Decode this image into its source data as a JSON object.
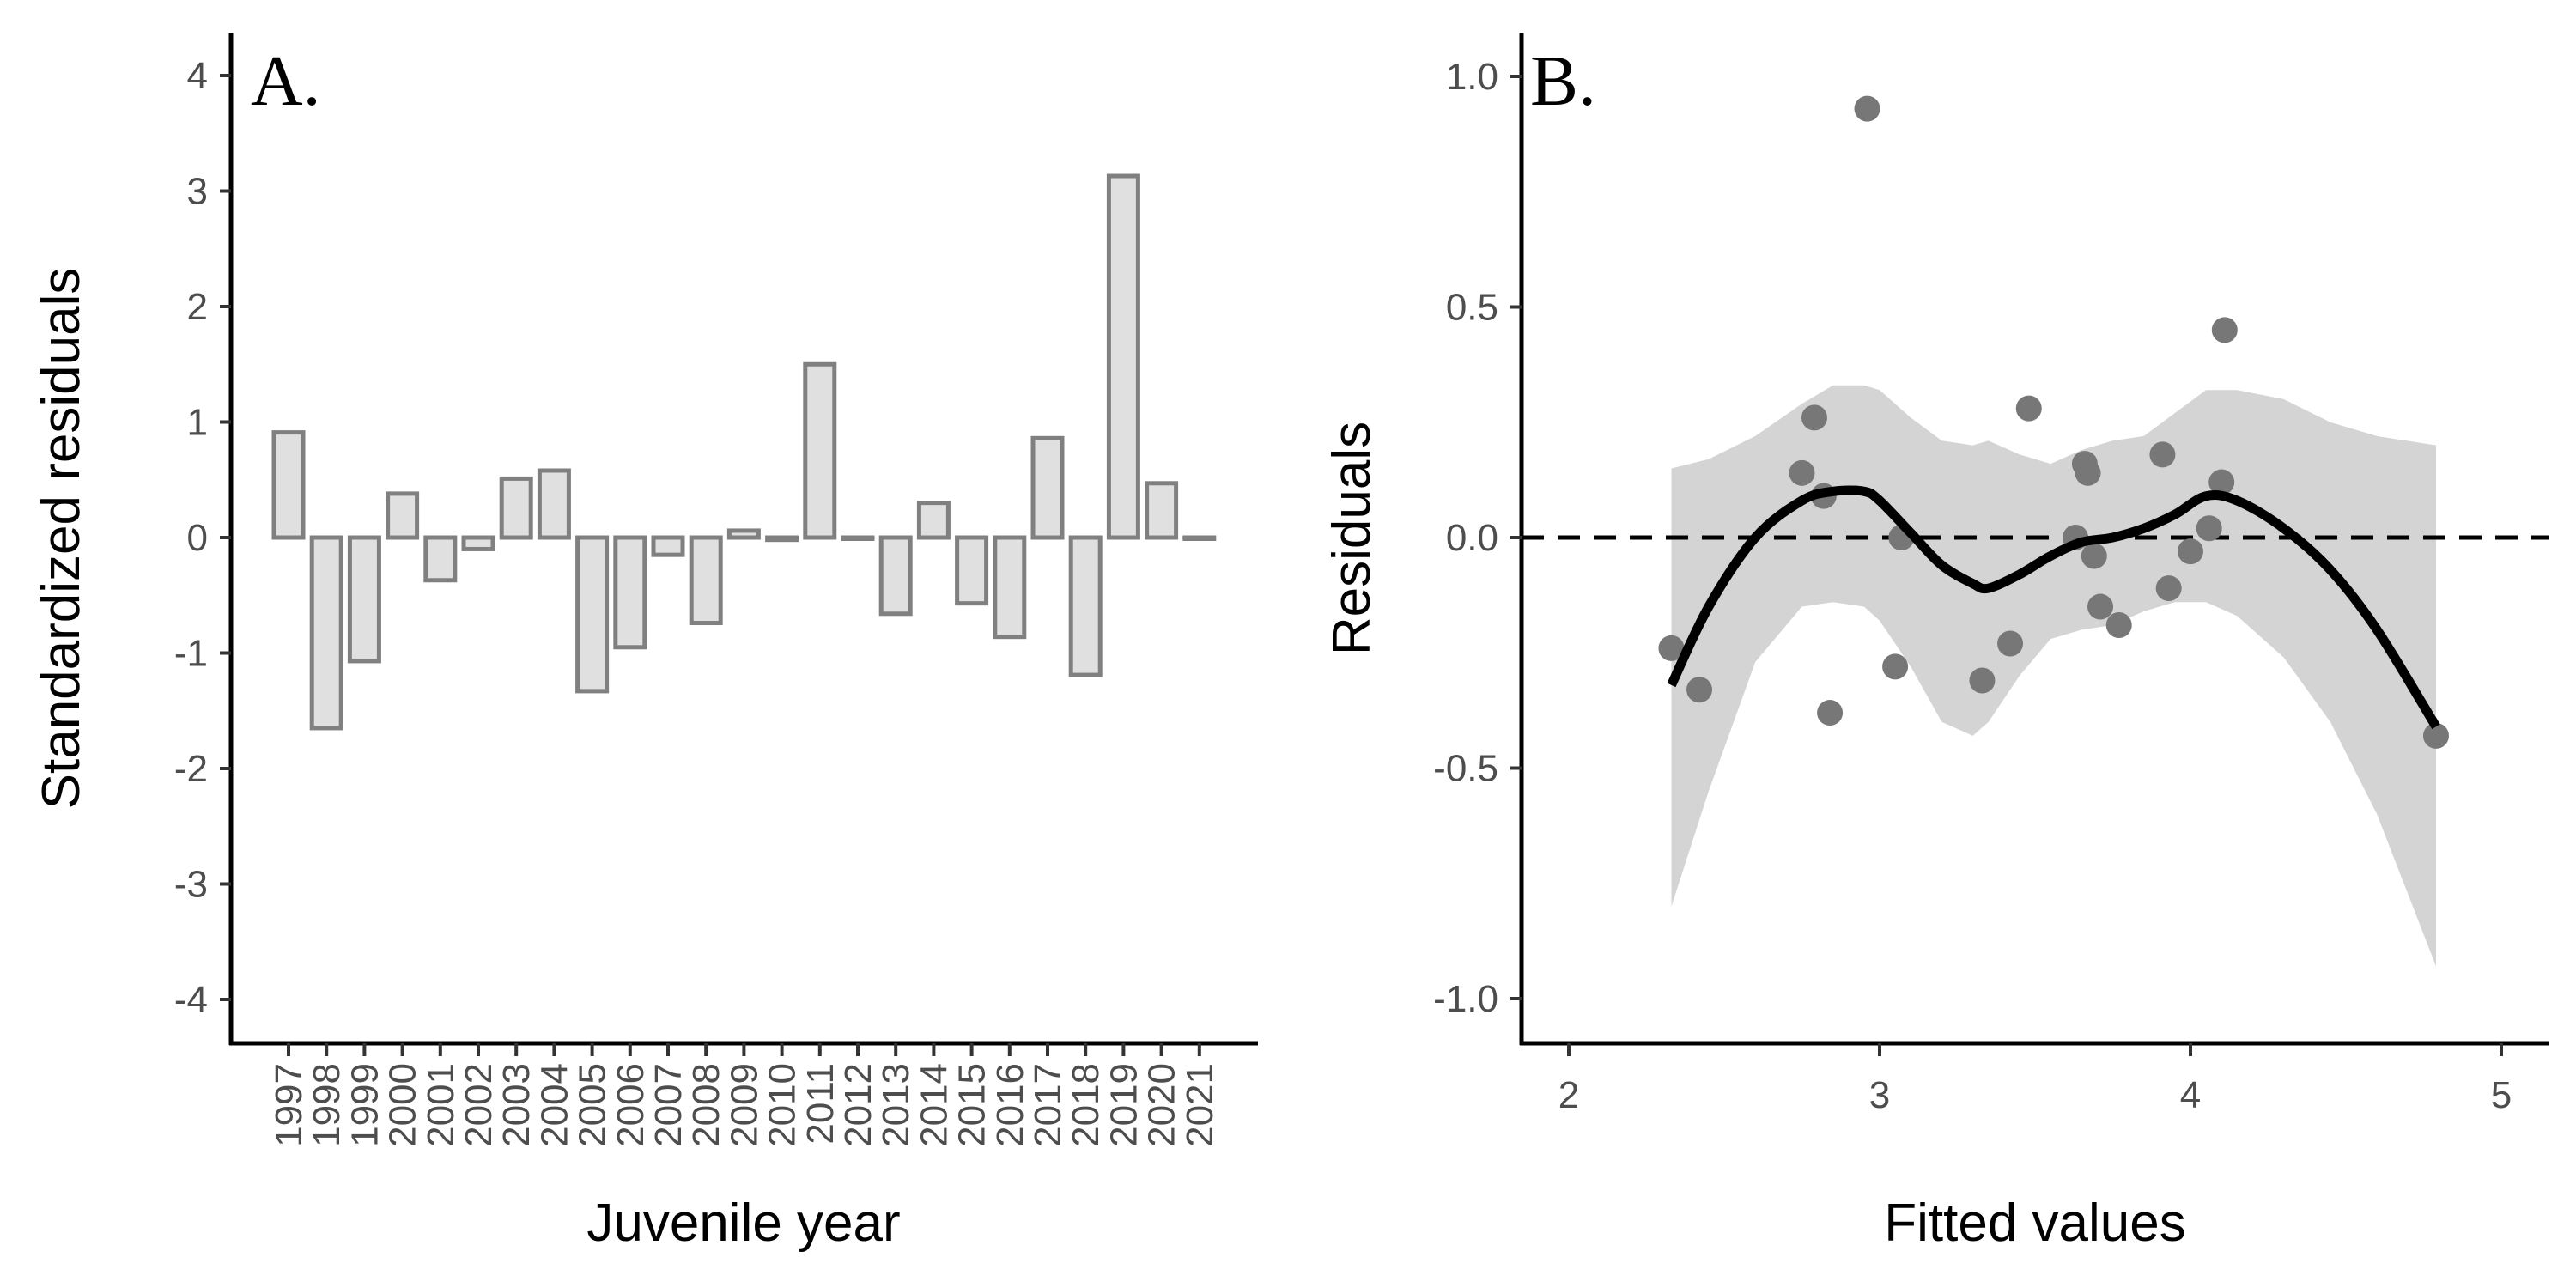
{
  "chart_data": [
    {
      "panel_label": "A.",
      "type": "bar",
      "xlabel": "Juvenile year",
      "ylabel": "Standardized residuals",
      "ylim": [
        -4.4,
        4.4
      ],
      "yticks": [
        "4",
        "3",
        "2",
        "1",
        "0",
        "-1",
        "-2",
        "-3",
        "-4"
      ],
      "grid": false,
      "categories": [
        "1997",
        "1998",
        "1999",
        "2000",
        "2001",
        "2002",
        "2003",
        "2004",
        "2005",
        "2006",
        "2007",
        "2008",
        "2009",
        "2010",
        "2011",
        "2012",
        "2013",
        "2014",
        "2015",
        "2016",
        "2017",
        "2018",
        "2019",
        "2020",
        "2021"
      ],
      "values": [
        0.91,
        -1.65,
        -1.07,
        0.38,
        -0.37,
        -0.1,
        0.51,
        0.58,
        -1.33,
        -0.95,
        -0.15,
        -0.74,
        0.06,
        -0.02,
        1.5,
        0.0,
        -0.66,
        0.3,
        -0.57,
        -0.86,
        0.86,
        -1.19,
        3.13,
        0.47,
        0.0
      ],
      "colors": {
        "fill": "#e0e0e0",
        "stroke": "#808080"
      }
    },
    {
      "panel_label": "B.",
      "type": "scatter",
      "xlabel": "Fitted values",
      "ylabel": "Residuals",
      "xlim": [
        1.85,
        5.15
      ],
      "ylim": [
        -1.1,
        1.1
      ],
      "xticks": [
        "2",
        "3",
        "4",
        "5"
      ],
      "yticks": [
        "1.0",
        "0.5",
        "0.0",
        "-0.5",
        "-1.0"
      ],
      "grid": false,
      "points": [
        {
          "x": 2.33,
          "y": -0.24
        },
        {
          "x": 2.42,
          "y": -0.33
        },
        {
          "x": 2.75,
          "y": 0.14
        },
        {
          "x": 2.79,
          "y": 0.26
        },
        {
          "x": 2.82,
          "y": 0.09
        },
        {
          "x": 2.84,
          "y": -0.38
        },
        {
          "x": 2.96,
          "y": 0.93
        },
        {
          "x": 3.05,
          "y": -0.28
        },
        {
          "x": 3.07,
          "y": 0.0
        },
        {
          "x": 3.33,
          "y": -0.31
        },
        {
          "x": 3.42,
          "y": -0.23
        },
        {
          "x": 3.48,
          "y": 0.28
        },
        {
          "x": 3.63,
          "y": 0.0
        },
        {
          "x": 3.66,
          "y": 0.16
        },
        {
          "x": 3.67,
          "y": 0.14
        },
        {
          "x": 3.69,
          "y": -0.04
        },
        {
          "x": 3.71,
          "y": -0.15
        },
        {
          "x": 3.77,
          "y": -0.19
        },
        {
          "x": 3.91,
          "y": 0.18
        },
        {
          "x": 3.93,
          "y": -0.11
        },
        {
          "x": 4.0,
          "y": -0.03
        },
        {
          "x": 4.06,
          "y": 0.02
        },
        {
          "x": 4.1,
          "y": 0.12
        },
        {
          "x": 4.11,
          "y": 0.45
        },
        {
          "x": 4.79,
          "y": -0.43
        }
      ],
      "smooth": {
        "x": [
          2.33,
          2.45,
          2.6,
          2.75,
          2.85,
          2.95,
          3.0,
          3.1,
          3.2,
          3.3,
          3.35,
          3.45,
          3.55,
          3.65,
          3.75,
          3.85,
          3.95,
          4.05,
          4.15,
          4.3,
          4.45,
          4.6,
          4.79
        ],
        "y": [
          -0.32,
          -0.15,
          0.0,
          0.08,
          0.1,
          0.1,
          0.08,
          0.01,
          -0.06,
          -0.1,
          -0.11,
          -0.08,
          -0.04,
          -0.01,
          0.0,
          0.02,
          0.05,
          0.09,
          0.08,
          0.02,
          -0.07,
          -0.2,
          -0.41
        ],
        "lower": [
          -0.8,
          -0.55,
          -0.27,
          -0.15,
          -0.14,
          -0.15,
          -0.18,
          -0.28,
          -0.4,
          -0.43,
          -0.4,
          -0.3,
          -0.22,
          -0.2,
          -0.19,
          -0.16,
          -0.14,
          -0.14,
          -0.17,
          -0.26,
          -0.4,
          -0.6,
          -0.93
        ],
        "upper": [
          0.15,
          0.17,
          0.22,
          0.29,
          0.33,
          0.33,
          0.32,
          0.26,
          0.21,
          0.2,
          0.21,
          0.18,
          0.16,
          0.19,
          0.21,
          0.22,
          0.27,
          0.32,
          0.32,
          0.3,
          0.25,
          0.22,
          0.2
        ]
      },
      "reference_line": {
        "y": 0,
        "style": "dashed"
      },
      "colors": {
        "points": "#777777",
        "line": "#000000",
        "band": "#d4d4d4",
        "reference": "#000000"
      }
    }
  ]
}
